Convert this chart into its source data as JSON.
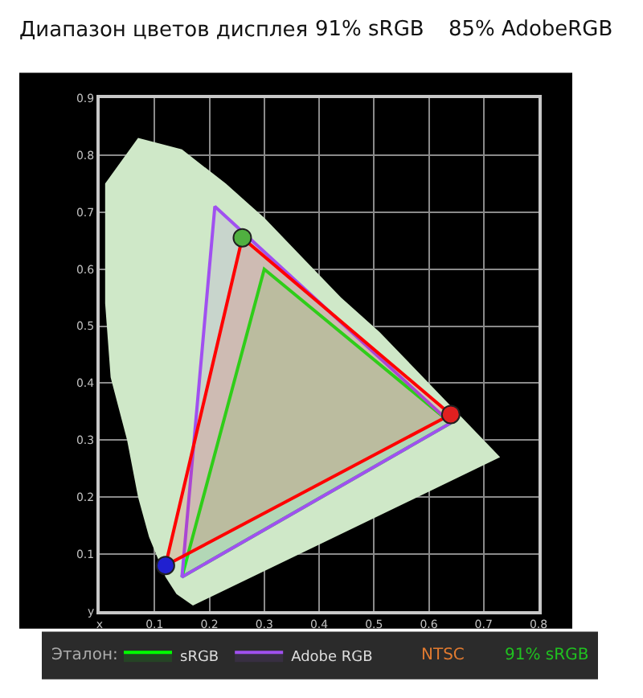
{
  "chart_data": {
    "type": "area",
    "title": "Диапазон цветов дисплея",
    "annotations": [
      "91% sRGB",
      "85% AdobeRGB",
      "Эталон:",
      "NTSC",
      "91% sRGB"
    ],
    "xlim": [
      0,
      0.8
    ],
    "ylim": [
      0,
      0.9
    ],
    "xticks": [
      {
        "value": 0,
        "label": "x"
      },
      0.1,
      0.2,
      0.3,
      0.4,
      0.5,
      0.6,
      0.7,
      0.8
    ],
    "yticks": [
      {
        "value": 0,
        "label": "y"
      },
      0.1,
      0.2,
      0.3,
      0.4,
      0.5,
      0.6,
      0.7,
      0.8,
      0.9
    ],
    "grid": true,
    "legend": "bottom",
    "series": [
      {
        "color": "#cfe8c8",
        "x": [
          0.17,
          0.14,
          0.12,
          0.09,
          0.07,
          0.05,
          0.02,
          0.01,
          0.01,
          0.07,
          0.15,
          0.23,
          0.3,
          0.37,
          0.44,
          0.51,
          0.58,
          0.63,
          0.67,
          0.73,
          0.17
        ],
        "values": [
          0.01,
          0.03,
          0.06,
          0.13,
          0.2,
          0.3,
          0.41,
          0.54,
          0.75,
          0.83,
          0.81,
          0.75,
          0.69,
          0.62,
          0.55,
          0.49,
          0.42,
          0.37,
          0.33,
          0.27,
          0.01
        ]
      },
      {
        "name": "sRGB",
        "color": "#00ff00",
        "x": [
          0.64,
          0.3,
          0.15,
          0.64
        ],
        "values": [
          0.33,
          0.6,
          0.06,
          0.33
        ]
      },
      {
        "name": "Adobe RGB",
        "color": "#a050f0",
        "x": [
          0.64,
          0.21,
          0.15,
          0.64
        ],
        "values": [
          0.33,
          0.71,
          0.06,
          0.33
        ]
      },
      {
        "color": "#ff0000",
        "x": [
          0.64,
          0.26,
          0.12,
          0.64
        ],
        "values": [
          0.345,
          0.655,
          0.08,
          0.345
        ]
      },
      {
        "type": "scatter",
        "marker": "circle",
        "colors": [
          "#e02020",
          "#50b040",
          "#2020d0"
        ],
        "x": [
          0.64,
          0.26,
          0.12
        ],
        "values": [
          0.345,
          0.655,
          0.08
        ]
      }
    ]
  }
}
